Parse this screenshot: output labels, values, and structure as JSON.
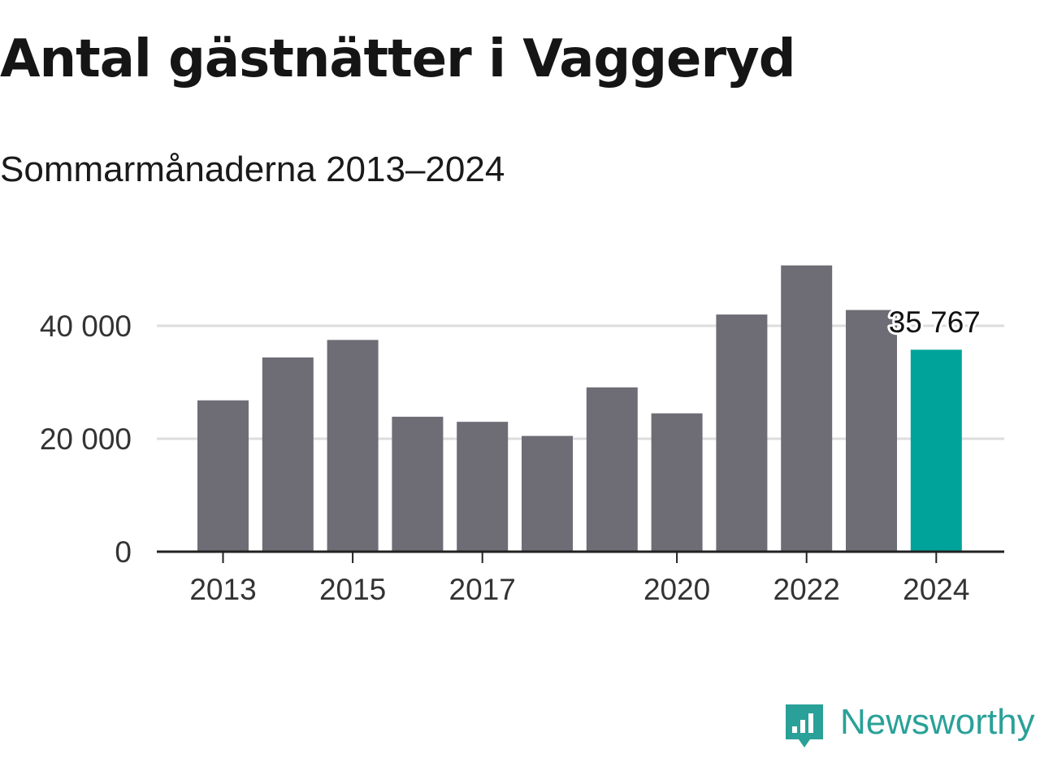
{
  "title": "Antal gästnätter i Vaggeryd",
  "subtitle": "Sommarmånaderna 2013–2024",
  "brand": {
    "name": "Newsworthy",
    "icon": "newsworthy-logo-icon",
    "color": "#2aa198"
  },
  "colors": {
    "bar": "#6e6d75",
    "highlight": "#00a39a",
    "grid": "#dddddd",
    "axis": "#222222",
    "text": "#333333"
  },
  "chart_data": {
    "type": "bar",
    "title": "Antal gästnätter i Vaggeryd",
    "subtitle": "Sommarmånaderna 2013–2024",
    "categories": [
      2013,
      2014,
      2015,
      2016,
      2017,
      2018,
      2019,
      2020,
      2021,
      2022,
      2023,
      2024
    ],
    "values": [
      26800,
      34400,
      37500,
      23900,
      23000,
      20500,
      29100,
      24500,
      42000,
      50700,
      42800,
      35767
    ],
    "highlight_index": 11,
    "data_labels": [
      {
        "index": 11,
        "text": "35 767"
      }
    ],
    "xticks": [
      2013,
      2015,
      2017,
      2020,
      2022,
      2024
    ],
    "xtick_labels": [
      "2013",
      "2015",
      "2017",
      "2020",
      "2022",
      "2024"
    ],
    "yticks": [
      0,
      20000,
      40000
    ],
    "ytick_labels": [
      "0",
      "20 000",
      "40 000"
    ],
    "ylim": [
      0,
      51000
    ],
    "xlabel": "",
    "ylabel": "",
    "grid": true,
    "legend": false
  }
}
